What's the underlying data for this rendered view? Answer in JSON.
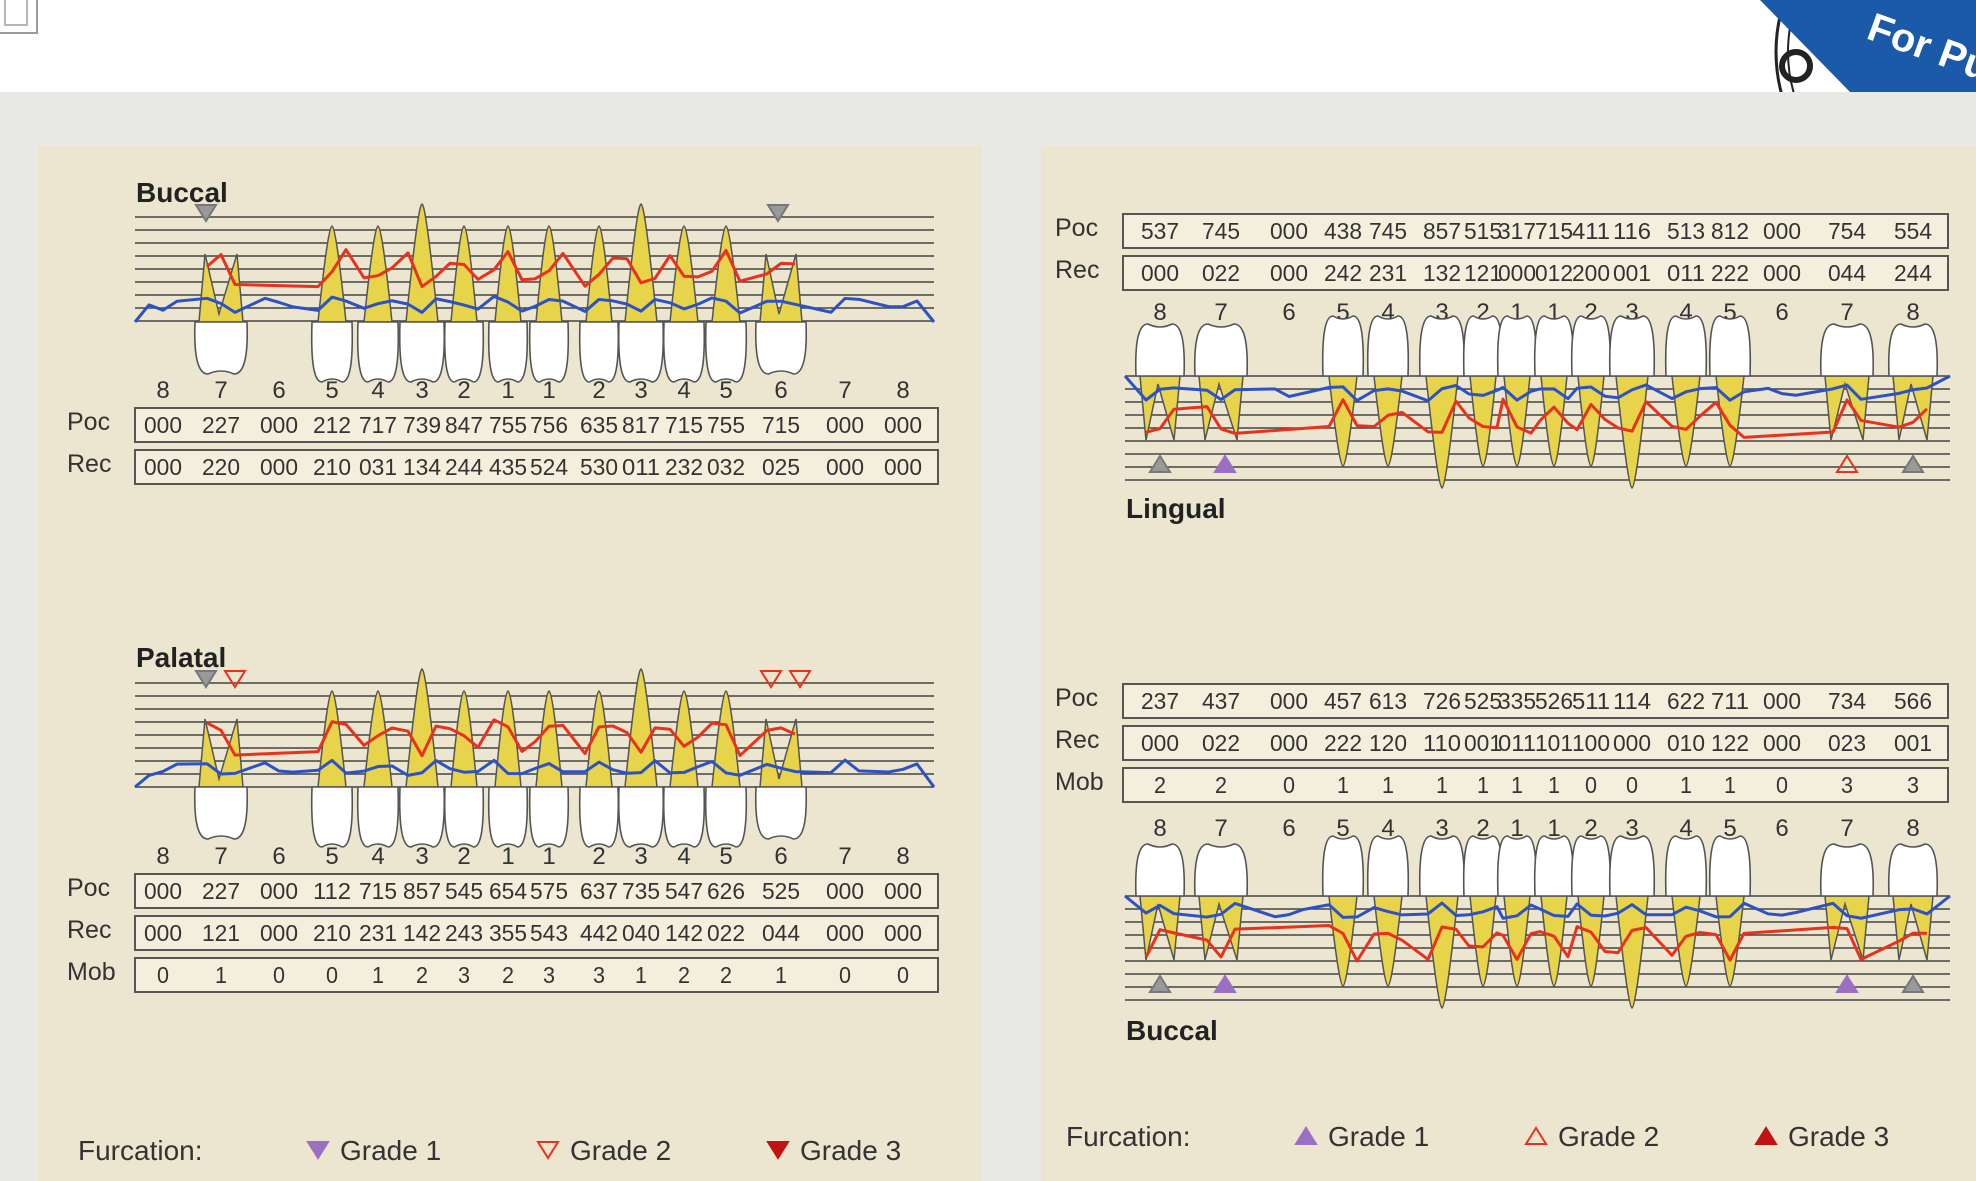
{
  "stamp_text": "For Publ",
  "left_panel": {
    "upper": {
      "title": "Buccal",
      "tooth_numbers": [
        "8",
        "7",
        "6",
        "5",
        "4",
        "3",
        "2",
        "1",
        "1",
        "2",
        "3",
        "4",
        "5",
        "6",
        "7",
        "8"
      ],
      "rows": [
        {
          "label": "Poc",
          "values": [
            "000",
            "227",
            "000",
            "212",
            "717",
            "739",
            "847",
            "755",
            "756",
            "635",
            "817",
            "715",
            "755",
            "715",
            "000",
            "000"
          ]
        },
        {
          "label": "Rec",
          "values": [
            "000",
            "220",
            "000",
            "210",
            "031",
            "134",
            "244",
            "435",
            "524",
            "530",
            "011",
            "232",
            "032",
            "025",
            "000",
            "000"
          ]
        }
      ]
    },
    "lower": {
      "title": "Palatal",
      "tooth_numbers": [
        "8",
        "7",
        "6",
        "5",
        "4",
        "3",
        "2",
        "1",
        "1",
        "2",
        "3",
        "4",
        "5",
        "6",
        "7",
        "8"
      ],
      "rows": [
        {
          "label": "Poc",
          "values": [
            "000",
            "227",
            "000",
            "112",
            "715",
            "857",
            "545",
            "654",
            "575",
            "637",
            "735",
            "547",
            "626",
            "525",
            "000",
            "000"
          ]
        },
        {
          "label": "Rec",
          "values": [
            "000",
            "121",
            "000",
            "210",
            "231",
            "142",
            "243",
            "355",
            "543",
            "442",
            "040",
            "142",
            "022",
            "044",
            "000",
            "000"
          ]
        },
        {
          "label": "Mob",
          "values": [
            "0",
            "1",
            "0",
            "0",
            "1",
            "2",
            "3",
            "2",
            "3",
            "3",
            "1",
            "2",
            "2",
            "1",
            "0",
            "0"
          ]
        }
      ]
    },
    "legend": {
      "title": "Furcation:",
      "grade1": "Grade 1",
      "grade2": "Grade 2",
      "grade3": "Grade 3"
    }
  },
  "right_panel": {
    "upper": {
      "title": "Lingual",
      "tooth_numbers": [
        "8",
        "7",
        "6",
        "5",
        "4",
        "3",
        "2",
        "1",
        "1",
        "2",
        "3",
        "4",
        "5",
        "6",
        "7",
        "8"
      ],
      "rows": [
        {
          "label": "Poc",
          "values": [
            "537",
            "745",
            "000",
            "438",
            "745",
            "857",
            "515",
            "317",
            "715",
            "411",
            "116",
            "513",
            "812",
            "000",
            "754",
            "554"
          ]
        },
        {
          "label": "Rec",
          "values": [
            "000",
            "022",
            "000",
            "242",
            "231",
            "132",
            "121",
            "000",
            "012",
            "200",
            "001",
            "011",
            "222",
            "000",
            "044",
            "244"
          ]
        }
      ]
    },
    "lower": {
      "title": "Buccal",
      "tooth_numbers": [
        "8",
        "7",
        "6",
        "5",
        "4",
        "3",
        "2",
        "1",
        "1",
        "2",
        "3",
        "4",
        "5",
        "6",
        "7",
        "8"
      ],
      "rows": [
        {
          "label": "Poc",
          "values": [
            "237",
            "437",
            "000",
            "457",
            "613",
            "726",
            "525",
            "335",
            "526",
            "511",
            "114",
            "622",
            "711",
            "000",
            "734",
            "566"
          ]
        },
        {
          "label": "Rec",
          "values": [
            "000",
            "022",
            "000",
            "222",
            "120",
            "110",
            "001",
            "011",
            "101",
            "100",
            "000",
            "010",
            "122",
            "000",
            "023",
            "001"
          ]
        },
        {
          "label": "Mob",
          "values": [
            "2",
            "2",
            "0",
            "1",
            "1",
            "1",
            "1",
            "1",
            "1",
            "0",
            "0",
            "1",
            "1",
            "0",
            "3",
            "3"
          ]
        }
      ]
    },
    "legend": {
      "title": "Furcation:",
      "grade1": "Grade 1",
      "grade2": "Grade 2",
      "grade3": "Grade 3"
    }
  },
  "colors": {
    "panel_bg": "#ece5cf",
    "probing_line": "#e8321e",
    "recession_line": "#2c52c4",
    "tooth_crown": "#ffffff",
    "tooth_root": "#e8d44a",
    "furcation_upper": "#9a6fc4",
    "furcation_grade2": "#e8321e",
    "furcation_grade3": "#c01414"
  }
}
